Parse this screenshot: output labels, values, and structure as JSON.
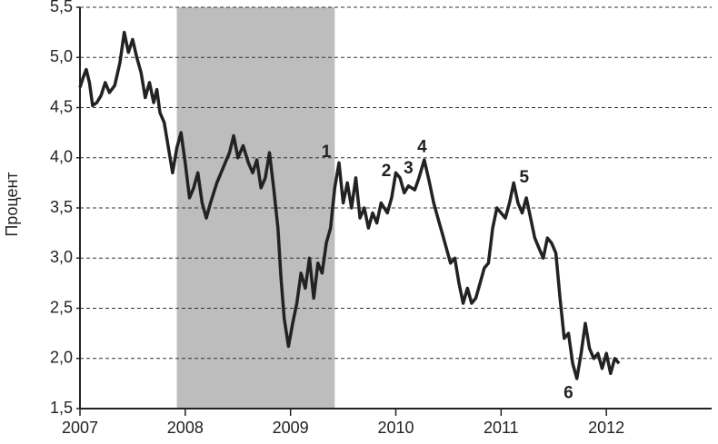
{
  "chart_data": {
    "type": "line",
    "y_label": "Процент",
    "color": "#222222",
    "grid": true,
    "shade_color": "#bdbdbd",
    "shaded_regions": [
      [
        2007.92,
        2009.42
      ]
    ],
    "xlim": [
      2007,
      2013
    ],
    "xticks": [
      2007,
      2008,
      2009,
      2010,
      2011,
      2012
    ],
    "ylim": [
      1.5,
      5.5
    ],
    "yticks": [
      {
        "value": 1.5,
        "label": "1,5"
      },
      {
        "value": 2.0,
        "label": "2,0"
      },
      {
        "value": 2.5,
        "label": "2,5"
      },
      {
        "value": 3.0,
        "label": "3,0"
      },
      {
        "value": 3.5,
        "label": "3,5"
      },
      {
        "value": 4.0,
        "label": "4,0"
      },
      {
        "value": 4.5,
        "label": "4,5"
      },
      {
        "value": 5.0,
        "label": "5,0"
      },
      {
        "value": 5.5,
        "label": "5,5"
      }
    ],
    "x": [
      2007.0,
      2007.03,
      2007.06,
      2007.09,
      2007.12,
      2007.16,
      2007.2,
      2007.24,
      2007.28,
      2007.33,
      2007.38,
      2007.42,
      2007.46,
      2007.5,
      2007.54,
      2007.58,
      2007.62,
      2007.66,
      2007.7,
      2007.73,
      2007.76,
      2007.8,
      2007.84,
      2007.88,
      2007.92,
      2007.96,
      2008.0,
      2008.04,
      2008.08,
      2008.12,
      2008.16,
      2008.2,
      2008.24,
      2008.3,
      2008.36,
      2008.42,
      2008.46,
      2008.5,
      2008.55,
      2008.6,
      2008.64,
      2008.68,
      2008.72,
      2008.76,
      2008.8,
      2008.84,
      2008.88,
      2008.91,
      2008.94,
      2008.98,
      2009.02,
      2009.06,
      2009.1,
      2009.14,
      2009.18,
      2009.22,
      2009.26,
      2009.3,
      2009.34,
      2009.38,
      2009.42,
      2009.46,
      2009.5,
      2009.54,
      2009.58,
      2009.62,
      2009.66,
      2009.7,
      2009.74,
      2009.78,
      2009.82,
      2009.86,
      2009.92,
      2009.96,
      2010.0,
      2010.04,
      2010.08,
      2010.12,
      2010.18,
      2010.22,
      2010.27,
      2010.32,
      2010.36,
      2010.4,
      2010.44,
      2010.48,
      2010.52,
      2010.56,
      2010.6,
      2010.64,
      2010.68,
      2010.72,
      2010.76,
      2010.8,
      2010.84,
      2010.88,
      2010.92,
      2010.96,
      2011.0,
      2011.04,
      2011.08,
      2011.12,
      2011.16,
      2011.2,
      2011.24,
      2011.28,
      2011.32,
      2011.36,
      2011.4,
      2011.44,
      2011.48,
      2011.52,
      2011.56,
      2011.6,
      2011.64,
      2011.68,
      2011.72,
      2011.76,
      2011.8,
      2011.84,
      2011.88,
      2011.92,
      2011.96,
      2012.0,
      2012.04,
      2012.08,
      2012.12
    ],
    "values": [
      4.7,
      4.8,
      4.88,
      4.75,
      4.52,
      4.55,
      4.62,
      4.75,
      4.65,
      4.72,
      4.95,
      5.25,
      5.05,
      5.18,
      5.0,
      4.85,
      4.6,
      4.75,
      4.55,
      4.68,
      4.45,
      4.35,
      4.1,
      3.85,
      4.1,
      4.25,
      3.95,
      3.6,
      3.7,
      3.85,
      3.55,
      3.4,
      3.55,
      3.75,
      3.9,
      4.05,
      4.22,
      4.0,
      4.12,
      3.95,
      3.85,
      3.98,
      3.7,
      3.8,
      4.05,
      3.7,
      3.3,
      2.8,
      2.4,
      2.12,
      2.35,
      2.55,
      2.85,
      2.7,
      3.0,
      2.6,
      2.95,
      2.85,
      3.15,
      3.3,
      3.7,
      3.95,
      3.55,
      3.75,
      3.5,
      3.8,
      3.4,
      3.5,
      3.3,
      3.45,
      3.35,
      3.55,
      3.45,
      3.6,
      3.85,
      3.8,
      3.65,
      3.72,
      3.68,
      3.8,
      3.98,
      3.75,
      3.55,
      3.4,
      3.25,
      3.1,
      2.95,
      3.0,
      2.75,
      2.55,
      2.7,
      2.55,
      2.6,
      2.75,
      2.9,
      2.95,
      3.3,
      3.5,
      3.45,
      3.4,
      3.55,
      3.75,
      3.55,
      3.45,
      3.6,
      3.4,
      3.2,
      3.1,
      3.0,
      3.2,
      3.15,
      3.05,
      2.6,
      2.2,
      2.25,
      1.95,
      1.8,
      2.05,
      2.35,
      2.1,
      2.0,
      2.05,
      1.9,
      2.05,
      1.85,
      2.0,
      1.95
    ],
    "annotations": [
      {
        "text": "1",
        "x": 2009.34,
        "y": 4.05
      },
      {
        "text": "2",
        "x": 2009.91,
        "y": 3.86
      },
      {
        "text": "3",
        "x": 2010.12,
        "y": 3.89
      },
      {
        "text": "4",
        "x": 2010.25,
        "y": 4.1
      },
      {
        "text": "5",
        "x": 2011.22,
        "y": 3.8
      },
      {
        "text": "6",
        "x": 2011.64,
        "y": 1.65
      }
    ]
  }
}
